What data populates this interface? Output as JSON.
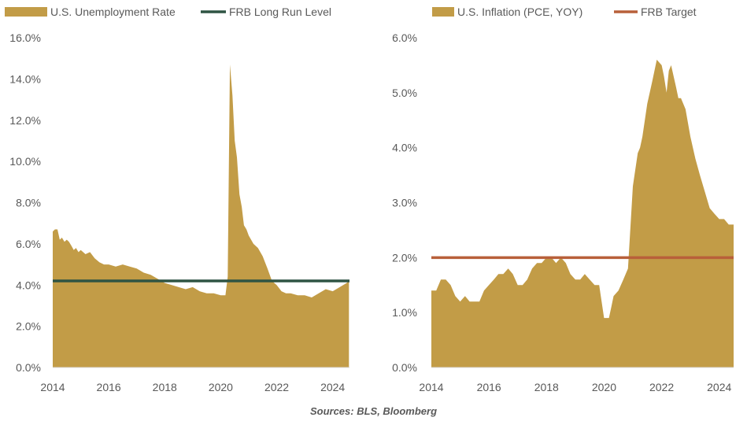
{
  "colors": {
    "area": "#C29C47",
    "unemployment_line": "#2F5443",
    "inflation_line": "#B8603A",
    "axis": "#D9D9D9",
    "text": "#595959"
  },
  "source_note": "Sources: BLS, Bloomberg",
  "chart_data": [
    {
      "type": "area",
      "legend": [
        {
          "label": "U.S. Unemployment Rate",
          "kind": "area",
          "color": "#C29C47"
        },
        {
          "label": "FRB Long Run Level",
          "kind": "line",
          "color": "#2F5443"
        }
      ],
      "ylim": [
        0,
        16
      ],
      "yticks": [
        "0.0%",
        "2.0%",
        "4.0%",
        "6.0%",
        "8.0%",
        "10.0%",
        "12.0%",
        "14.0%",
        "16.0%"
      ],
      "ytick_values": [
        0,
        2,
        4,
        6,
        8,
        10,
        12,
        14,
        16
      ],
      "xlim": [
        2014.0,
        2024.6
      ],
      "xticks": [
        "2014",
        "2016",
        "2018",
        "2020",
        "2022",
        "2024"
      ],
      "xtick_values": [
        2014,
        2016,
        2018,
        2020,
        2022,
        2024
      ],
      "series": [
        {
          "name": "U.S. Unemployment Rate",
          "x": [
            2014.0,
            2014.08,
            2014.17,
            2014.25,
            2014.33,
            2014.42,
            2014.5,
            2014.58,
            2014.67,
            2014.75,
            2014.83,
            2014.92,
            2015.0,
            2015.17,
            2015.33,
            2015.5,
            2015.67,
            2015.83,
            2016.0,
            2016.25,
            2016.5,
            2016.75,
            2017.0,
            2017.25,
            2017.5,
            2017.75,
            2018.0,
            2018.25,
            2018.5,
            2018.75,
            2019.0,
            2019.25,
            2019.5,
            2019.75,
            2020.0,
            2020.17,
            2020.25,
            2020.33,
            2020.42,
            2020.5,
            2020.58,
            2020.67,
            2020.75,
            2020.83,
            2020.92,
            2021.0,
            2021.17,
            2021.33,
            2021.5,
            2021.67,
            2021.83,
            2022.0,
            2022.17,
            2022.33,
            2022.5,
            2022.75,
            2023.0,
            2023.25,
            2023.5,
            2023.75,
            2024.0,
            2024.25,
            2024.5,
            2024.58
          ],
          "y": [
            6.6,
            6.7,
            6.7,
            6.2,
            6.3,
            6.1,
            6.2,
            6.1,
            5.9,
            5.7,
            5.8,
            5.6,
            5.7,
            5.5,
            5.6,
            5.3,
            5.1,
            5.0,
            5.0,
            4.9,
            5.0,
            4.9,
            4.8,
            4.6,
            4.5,
            4.3,
            4.1,
            4.0,
            3.9,
            3.8,
            3.9,
            3.7,
            3.6,
            3.6,
            3.5,
            3.5,
            4.4,
            14.7,
            13.2,
            11.0,
            10.2,
            8.4,
            7.8,
            6.9,
            6.7,
            6.4,
            6.0,
            5.8,
            5.4,
            4.8,
            4.2,
            4.0,
            3.7,
            3.6,
            3.6,
            3.5,
            3.5,
            3.4,
            3.6,
            3.8,
            3.7,
            3.9,
            4.1,
            4.2
          ]
        },
        {
          "name": "FRB Long Run Level",
          "x": [
            2014.0,
            2024.6
          ],
          "y": [
            4.2,
            4.2
          ]
        }
      ]
    },
    {
      "type": "area",
      "legend": [
        {
          "label": "U.S. Inflation (PCE, YOY)",
          "kind": "area",
          "color": "#C29C47"
        },
        {
          "label": "FRB Target",
          "kind": "line",
          "color": "#B8603A"
        }
      ],
      "ylim": [
        0,
        6
      ],
      "yticks": [
        "0.0%",
        "1.0%",
        "2.0%",
        "3.0%",
        "4.0%",
        "5.0%",
        "6.0%"
      ],
      "ytick_values": [
        0,
        1,
        2,
        3,
        4,
        5,
        6
      ],
      "xlim": [
        2014.0,
        2024.5
      ],
      "xticks": [
        "2014",
        "2016",
        "2018",
        "2020",
        "2022",
        "2024"
      ],
      "xtick_values": [
        2014,
        2016,
        2018,
        2020,
        2022,
        2024
      ],
      "series": [
        {
          "name": "U.S. Inflation (PCE, YOY)",
          "x": [
            2014.0,
            2014.17,
            2014.33,
            2014.5,
            2014.67,
            2014.83,
            2015.0,
            2015.17,
            2015.33,
            2015.5,
            2015.67,
            2015.83,
            2016.0,
            2016.17,
            2016.33,
            2016.5,
            2016.67,
            2016.83,
            2017.0,
            2017.17,
            2017.33,
            2017.5,
            2017.67,
            2017.83,
            2018.0,
            2018.17,
            2018.33,
            2018.5,
            2018.67,
            2018.83,
            2019.0,
            2019.17,
            2019.33,
            2019.5,
            2019.67,
            2019.83,
            2020.0,
            2020.17,
            2020.25,
            2020.33,
            2020.5,
            2020.67,
            2020.83,
            2021.0,
            2021.17,
            2021.25,
            2021.33,
            2021.5,
            2021.67,
            2021.83,
            2022.0,
            2022.08,
            2022.17,
            2022.25,
            2022.33,
            2022.5,
            2022.58,
            2022.67,
            2022.75,
            2022.83,
            2023.0,
            2023.17,
            2023.33,
            2023.5,
            2023.67,
            2023.83,
            2024.0,
            2024.17,
            2024.33,
            2024.42,
            2024.5
          ],
          "y": [
            1.4,
            1.4,
            1.6,
            1.6,
            1.5,
            1.3,
            1.2,
            1.3,
            1.2,
            1.2,
            1.2,
            1.4,
            1.5,
            1.6,
            1.7,
            1.7,
            1.8,
            1.7,
            1.5,
            1.5,
            1.6,
            1.8,
            1.9,
            1.9,
            2.0,
            2.0,
            1.9,
            2.0,
            1.9,
            1.7,
            1.6,
            1.6,
            1.7,
            1.6,
            1.5,
            1.5,
            0.9,
            0.9,
            1.1,
            1.3,
            1.4,
            1.6,
            1.8,
            3.3,
            3.9,
            4.0,
            4.2,
            4.8,
            5.2,
            5.6,
            5.5,
            5.3,
            5.0,
            5.4,
            5.5,
            5.1,
            4.9,
            4.9,
            4.8,
            4.7,
            4.2,
            3.8,
            3.5,
            3.2,
            2.9,
            2.8,
            2.7,
            2.7,
            2.6,
            2.6,
            2.6
          ]
        },
        {
          "name": "FRB Target",
          "x": [
            2014.0,
            2024.5
          ],
          "y": [
            2.0,
            2.0
          ]
        }
      ]
    }
  ]
}
